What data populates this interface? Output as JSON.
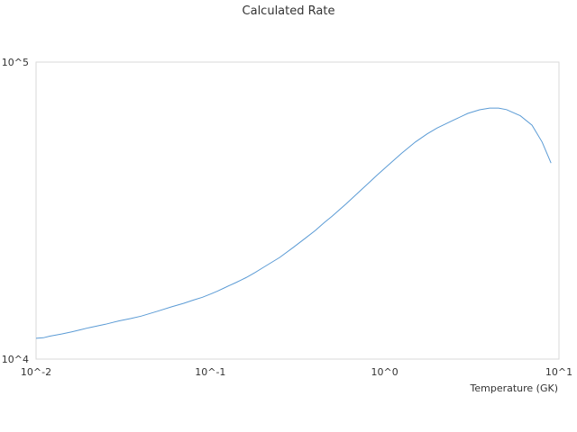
{
  "chart_data": {
    "type": "line",
    "title": "Calculated Rate",
    "xlabel": "Temperature (GK)",
    "ylabel": "",
    "x_scale": "log",
    "y_scale": "log",
    "xlim": [
      0.01,
      10
    ],
    "ylim": [
      10000,
      100000
    ],
    "x_ticks": [
      "10^-2",
      "10^-1",
      "10^0",
      "10^1"
    ],
    "y_ticks": [
      "10^4",
      "10^5"
    ],
    "grid": false,
    "series": [
      {
        "color": "#5b9bd5",
        "x": [
          0.01,
          0.011,
          0.012,
          0.014,
          0.016,
          0.018,
          0.02,
          0.025,
          0.03,
          0.035,
          0.04,
          0.05,
          0.06,
          0.07,
          0.08,
          0.09,
          0.1,
          0.11,
          0.12,
          0.13,
          0.14,
          0.15,
          0.16,
          0.18,
          0.2,
          0.25,
          0.3,
          0.35,
          0.4,
          0.45,
          0.5,
          0.6,
          0.7,
          0.8,
          0.9,
          1.0,
          1.25,
          1.5,
          1.75,
          2.0,
          2.5,
          3.0,
          3.5,
          4.0,
          4.5,
          5.0,
          6.0,
          7.0,
          8.0,
          9.0
        ],
        "y": [
          11750,
          11800,
          11950,
          12150,
          12350,
          12550,
          12750,
          13100,
          13450,
          13700,
          13950,
          14500,
          15000,
          15400,
          15800,
          16150,
          16550,
          16950,
          17350,
          17750,
          18100,
          18450,
          18800,
          19550,
          20300,
          22000,
          23800,
          25500,
          27100,
          28800,
          30300,
          33300,
          36200,
          38900,
          41500,
          43900,
          49300,
          53800,
          57300,
          60000,
          63900,
          67200,
          69100,
          70000,
          70000,
          69200,
          66000,
          61300,
          53800,
          45700
        ]
      }
    ]
  }
}
